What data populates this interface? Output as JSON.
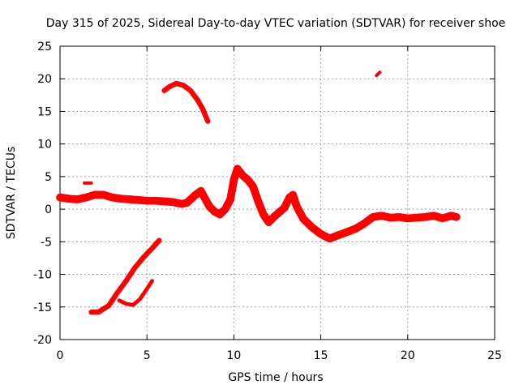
{
  "chart_data": {
    "type": "scatter",
    "title": "Day 315 of 2025, Sidereal Day-to-day VTEC variation (SDTVAR) for receiver shoe",
    "xlabel": "GPS time / hours",
    "ylabel": "SDTVAR / TECUs",
    "xlim": [
      0,
      25
    ],
    "ylim": [
      -20,
      25
    ],
    "xticks": [
      0,
      5,
      10,
      15,
      20,
      25
    ],
    "yticks": [
      -20,
      -15,
      -10,
      -5,
      0,
      5,
      10,
      15,
      20,
      25
    ],
    "grid": true,
    "color": "#ff0000",
    "series": [
      {
        "name": "main-trace",
        "thickness": 1.2,
        "points": [
          [
            0.0,
            1.8
          ],
          [
            0.5,
            1.6
          ],
          [
            1.0,
            1.5
          ],
          [
            1.5,
            1.8
          ],
          [
            2.0,
            2.2
          ],
          [
            2.5,
            2.2
          ],
          [
            3.0,
            1.8
          ],
          [
            3.5,
            1.6
          ],
          [
            4.0,
            1.5
          ],
          [
            4.5,
            1.4
          ],
          [
            5.0,
            1.3
          ],
          [
            5.5,
            1.3
          ],
          [
            6.0,
            1.2
          ],
          [
            6.5,
            1.1
          ],
          [
            7.0,
            0.8
          ],
          [
            7.3,
            1.0
          ],
          [
            7.8,
            2.2
          ],
          [
            8.1,
            2.8
          ],
          [
            8.3,
            1.8
          ],
          [
            8.6,
            0.4
          ],
          [
            8.9,
            -0.4
          ],
          [
            9.2,
            -0.8
          ],
          [
            9.5,
            0.0
          ],
          [
            9.8,
            1.5
          ],
          [
            10.0,
            4.5
          ],
          [
            10.2,
            6.2
          ],
          [
            10.5,
            5.2
          ],
          [
            10.8,
            4.5
          ],
          [
            11.1,
            3.5
          ],
          [
            11.4,
            1.2
          ],
          [
            11.7,
            -0.8
          ],
          [
            12.0,
            -2.0
          ],
          [
            12.3,
            -1.2
          ],
          [
            12.6,
            -0.5
          ],
          [
            12.9,
            0.2
          ],
          [
            13.2,
            1.8
          ],
          [
            13.4,
            2.2
          ],
          [
            13.6,
            0.5
          ],
          [
            14.0,
            -1.5
          ],
          [
            14.5,
            -2.8
          ],
          [
            15.0,
            -3.8
          ],
          [
            15.5,
            -4.5
          ],
          [
            16.0,
            -4.0
          ],
          [
            16.5,
            -3.5
          ],
          [
            17.0,
            -3.0
          ],
          [
            17.5,
            -2.2
          ],
          [
            18.0,
            -1.2
          ],
          [
            18.5,
            -1.0
          ],
          [
            19.0,
            -1.3
          ],
          [
            19.5,
            -1.2
          ],
          [
            20.0,
            -1.4
          ],
          [
            20.5,
            -1.3
          ],
          [
            21.0,
            -1.2
          ],
          [
            21.5,
            -1.0
          ],
          [
            22.0,
            -1.4
          ],
          [
            22.5,
            -1.0
          ],
          [
            22.8,
            -1.2
          ]
        ]
      },
      {
        "name": "trace-upper-arc",
        "thickness": 0.8,
        "points": [
          [
            6.0,
            18.2
          ],
          [
            6.3,
            18.8
          ],
          [
            6.7,
            19.3
          ],
          [
            7.1,
            19.0
          ],
          [
            7.5,
            18.2
          ],
          [
            7.9,
            16.8
          ],
          [
            8.2,
            15.4
          ],
          [
            8.5,
            13.5
          ]
        ]
      },
      {
        "name": "trace-small-segment-top",
        "thickness": 0.5,
        "points": [
          [
            18.2,
            20.5
          ],
          [
            18.4,
            21.0
          ]
        ]
      },
      {
        "name": "trace-short-segment-left",
        "thickness": 0.5,
        "points": [
          [
            1.4,
            4.0
          ],
          [
            1.8,
            4.0
          ]
        ]
      },
      {
        "name": "trace-rising-diagonal",
        "thickness": 0.8,
        "points": [
          [
            1.8,
            -15.8
          ],
          [
            2.2,
            -15.8
          ],
          [
            2.8,
            -14.8
          ],
          [
            3.3,
            -12.8
          ],
          [
            3.8,
            -11.0
          ],
          [
            4.3,
            -9.0
          ],
          [
            4.8,
            -7.4
          ],
          [
            5.3,
            -6.0
          ],
          [
            5.7,
            -4.8
          ]
        ]
      },
      {
        "name": "trace-lower-hook",
        "thickness": 0.6,
        "points": [
          [
            3.4,
            -14.0
          ],
          [
            3.8,
            -14.5
          ],
          [
            4.2,
            -14.7
          ],
          [
            4.6,
            -13.8
          ],
          [
            5.0,
            -12.2
          ],
          [
            5.3,
            -11.0
          ]
        ]
      }
    ]
  }
}
